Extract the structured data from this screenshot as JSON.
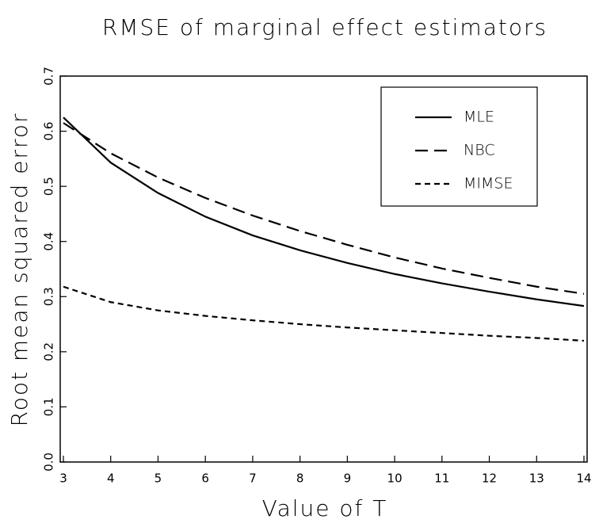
{
  "chart_data": {
    "type": "line",
    "title": "RMSE of marginal effect estimators",
    "x_label": "Value of T",
    "y_label": "Root mean squared error",
    "x": [
      3,
      4,
      5,
      6,
      7,
      8,
      9,
      10,
      11,
      12,
      13,
      14
    ],
    "series": [
      {
        "name": "MLE",
        "color": "#000000",
        "dash": "solid",
        "values": [
          0.625,
          0.543,
          0.488,
          0.445,
          0.411,
          0.384,
          0.361,
          0.341,
          0.324,
          0.309,
          0.295,
          0.283
        ]
      },
      {
        "name": "NBC",
        "color": "#000000",
        "dash": "long",
        "values": [
          0.615,
          0.56,
          0.516,
          0.479,
          0.447,
          0.419,
          0.394,
          0.371,
          0.351,
          0.334,
          0.318,
          0.305
        ]
      },
      {
        "name": "MIMSE",
        "color": "#000000",
        "dash": "short",
        "values": [
          0.318,
          0.29,
          0.275,
          0.265,
          0.257,
          0.25,
          0.244,
          0.239,
          0.234,
          0.229,
          0.225,
          0.22
        ]
      }
    ],
    "xlim": [
      3,
      14
    ],
    "xticks": [
      3,
      4,
      5,
      6,
      7,
      8,
      9,
      10,
      11,
      12,
      13,
      14
    ],
    "ylim": [
      0,
      0.7
    ],
    "yticks": [
      {
        "value": 0,
        "label": "0.0"
      },
      0.1,
      0.2,
      0.3,
      0.4,
      0.5,
      0.6,
      0.7
    ],
    "grid": false,
    "legend": "upper right"
  }
}
